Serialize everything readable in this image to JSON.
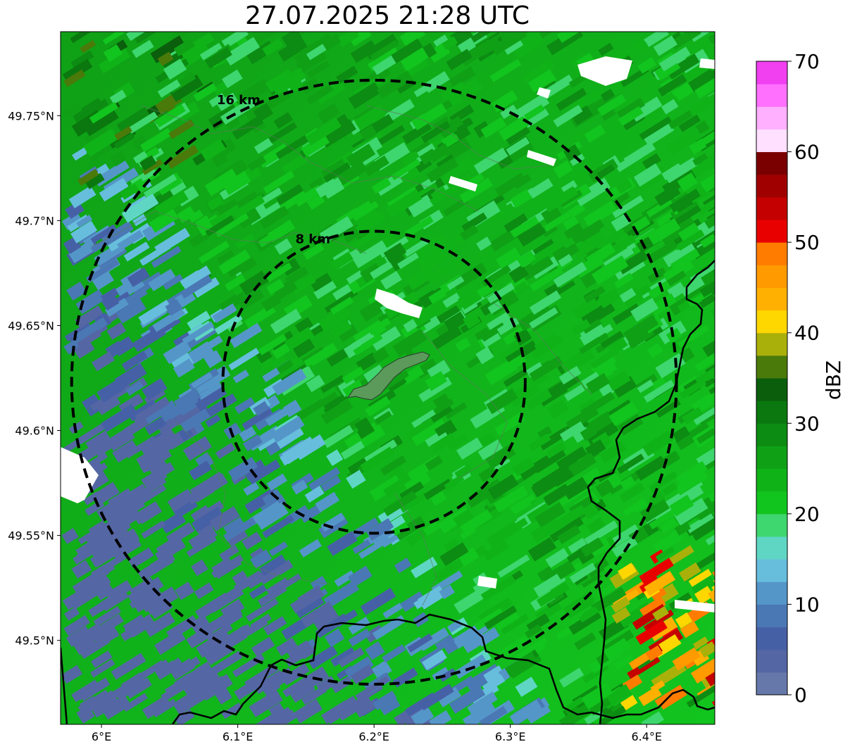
{
  "title": "27.07.2025 21:28 UTC",
  "map": {
    "lon_range": [
      5.97,
      6.45
    ],
    "lat_range": [
      49.46,
      49.79
    ],
    "lon_ticks": [
      {
        "value": 6.0,
        "label": "6°E"
      },
      {
        "value": 6.1,
        "label": "6.1°E"
      },
      {
        "value": 6.2,
        "label": "6.2°E"
      },
      {
        "value": 6.3,
        "label": "6.3°E"
      },
      {
        "value": 6.4,
        "label": "6.4°E"
      }
    ],
    "lat_ticks": [
      {
        "value": 49.75,
        "label": "49.75°N"
      },
      {
        "value": 49.7,
        "label": "49.7°N"
      },
      {
        "value": 49.65,
        "label": "49.65°N"
      },
      {
        "value": 49.6,
        "label": "49.6°N"
      },
      {
        "value": 49.55,
        "label": "49.55°N"
      },
      {
        "value": 49.5,
        "label": "49.5°N"
      }
    ],
    "range_rings": [
      {
        "label": "8 km",
        "radius_km": 8
      },
      {
        "label": "16 km",
        "radius_km": 16
      }
    ],
    "center": {
      "lon": 6.2,
      "lat": 49.623
    }
  },
  "colorbar": {
    "label": "dBZ",
    "min": 0,
    "max": 70,
    "tick_labels": [
      "0",
      "10",
      "20",
      "30",
      "40",
      "50",
      "60",
      "70"
    ],
    "colors": [
      "#6677aa",
      "#5566a4",
      "#4660a6",
      "#4a78b4",
      "#5596c8",
      "#66bedc",
      "#5fd6c4",
      "#3ed66e",
      "#12c41e",
      "#0fb318",
      "#0fa016",
      "#0c8c12",
      "#0a780e",
      "#0a5e0c",
      "#4a7a0a",
      "#aab00a",
      "#ffd700",
      "#ffb000",
      "#ff9a00",
      "#ff7c00",
      "#e80000",
      "#c40000",
      "#a00000",
      "#7a0000",
      "#ffe0ff",
      "#ffb0ff",
      "#ff70ff",
      "#f040f0"
    ]
  },
  "colors": {
    "ring": "#000000",
    "border": "#000000",
    "no_data": "#ffffff"
  }
}
